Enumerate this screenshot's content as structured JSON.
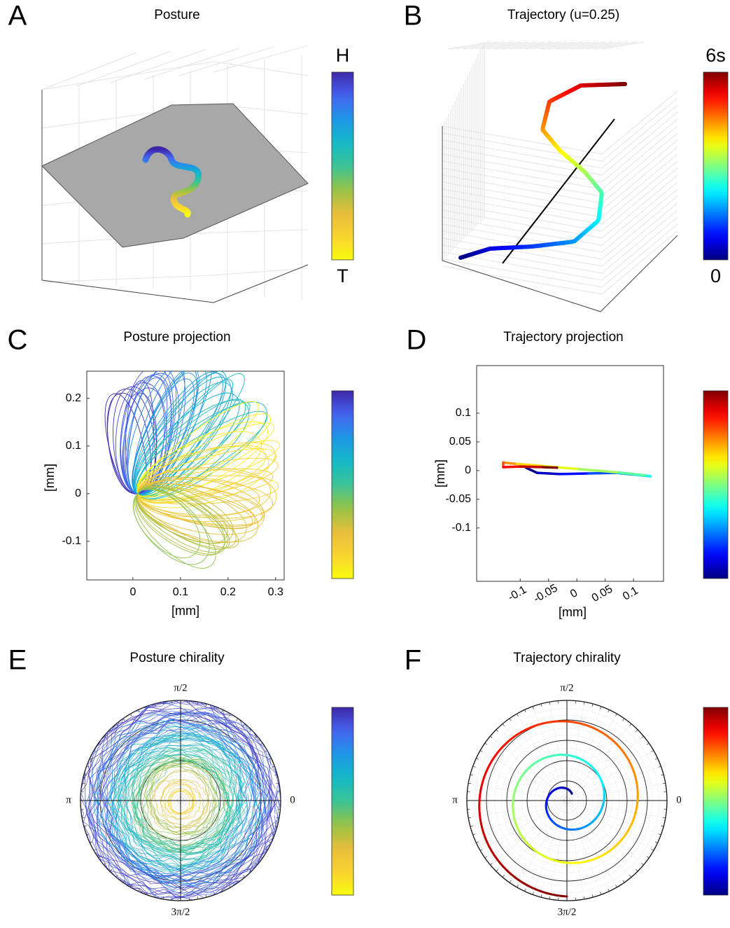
{
  "chart_data": [
    {
      "type": "posture-3d",
      "panel": "A",
      "title": "Posture",
      "colormap": "parula",
      "colorbar_labels": [
        "H",
        "T"
      ]
    },
    {
      "type": "trajectory-3d",
      "panel": "B",
      "title": "Trajectory (u=0.25)",
      "colormap": "jet",
      "colorbar_labels": [
        "6s",
        "0"
      ]
    },
    {
      "type": "posture-projection",
      "panel": "C",
      "title": "Posture projection",
      "xlabel": "[mm]",
      "ylabel": "[mm]",
      "xlim": [
        -0.097,
        0.318
      ],
      "ylim": [
        -0.181,
        0.257
      ],
      "xticks": [
        0,
        0.1,
        0.2,
        0.3
      ],
      "yticks": [
        -0.1,
        0,
        0.1,
        0.2
      ],
      "colormap": "parula"
    },
    {
      "type": "line",
      "panel": "D",
      "title": "Trajectory projection",
      "xlabel": "[mm]",
      "ylabel": "[mm]",
      "xlim": [
        -0.177,
        0.153
      ],
      "ylim": [
        -0.193,
        0.183
      ],
      "xticks": [
        -0.1,
        -0.05,
        0,
        0.05,
        0.1
      ],
      "yticks": [
        -0.1,
        -0.05,
        0,
        0.05,
        0.1
      ],
      "colormap": "jet",
      "x": [
        -0.09,
        -0.07,
        -0.03,
        0.02,
        0.07,
        0.1,
        0.13,
        0.12,
        0.07,
        0.0,
        -0.06,
        -0.11,
        -0.13,
        -0.13,
        -0.1,
        -0.06,
        -0.035
      ],
      "y": [
        0.005,
        -0.004,
        -0.006,
        -0.005,
        -0.004,
        -0.007,
        -0.01,
        -0.008,
        -0.003,
        0.003,
        0.008,
        0.012,
        0.014,
        0.006,
        0.007,
        0.006,
        0.005
      ]
    },
    {
      "type": "posture-polar",
      "panel": "E",
      "title": "Posture chirality",
      "colormap": "parula",
      "angle_ticks": [
        {
          "value": 90,
          "label": "π/2"
        },
        {
          "value": 180,
          "label": "π"
        },
        {
          "value": 0,
          "label": "0"
        },
        {
          "value": 270,
          "label": "3π/2"
        }
      ]
    },
    {
      "type": "trajectory-polar",
      "panel": "F",
      "title": "Trajectory chirality",
      "colormap": "jet",
      "angle_ticks": [
        {
          "value": 90,
          "label": "π/2"
        },
        {
          "value": 180,
          "label": "π"
        },
        {
          "value": 0,
          "label": "0"
        },
        {
          "value": 270,
          "label": "3π/2"
        }
      ]
    }
  ]
}
